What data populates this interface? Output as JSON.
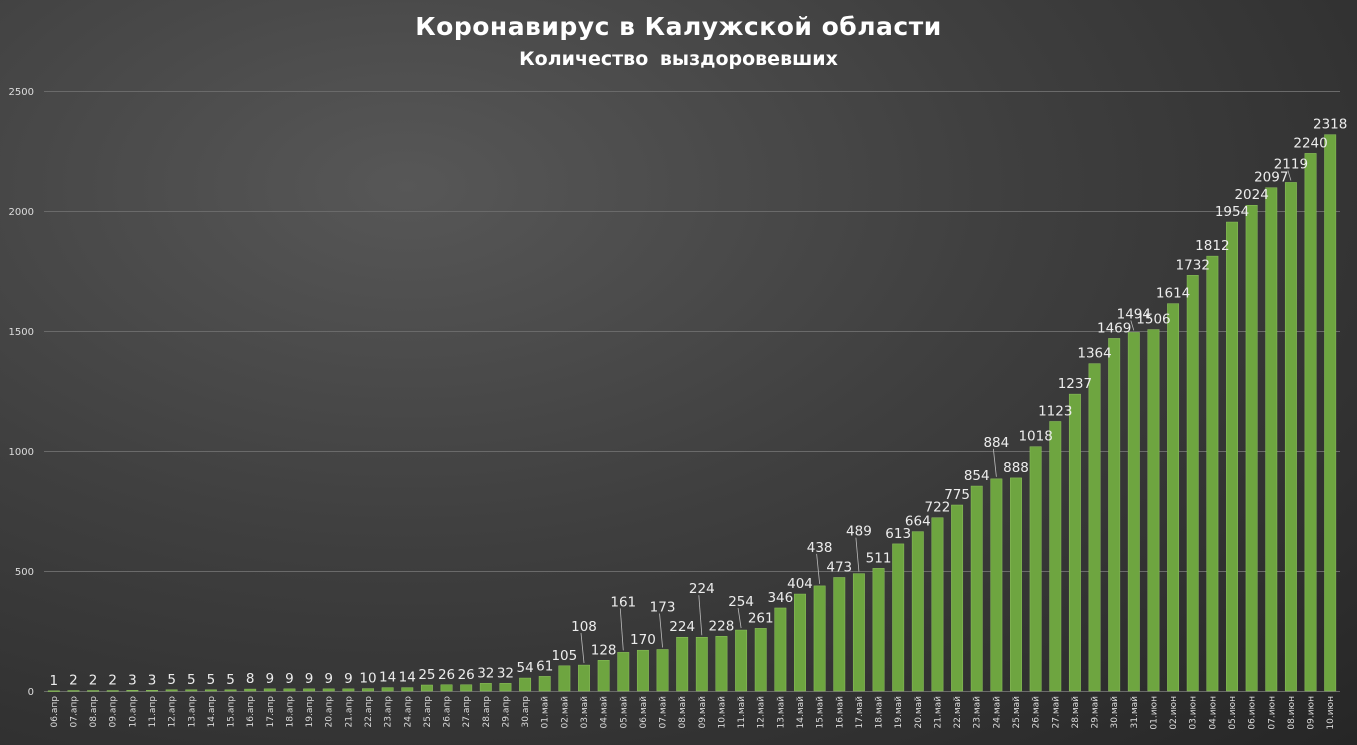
{
  "chart_data": {
    "type": "bar",
    "title": "Коронавирус в Калужской области",
    "subtitle": "Количество выздоровевших",
    "xlabel": "",
    "ylabel": "",
    "ylim": [
      0,
      2500
    ],
    "yticks": [
      0,
      500,
      1000,
      1500,
      2000,
      2500
    ],
    "grid": true,
    "legend": "none",
    "bar_color": "#6ea540",
    "categories": [
      "06.апр",
      "07.апр",
      "08.апр",
      "09.апр",
      "10.апр",
      "11.апр",
      "12.апр",
      "13.апр",
      "14.апр",
      "15.апр",
      "16.апр",
      "17.апр",
      "18.апр",
      "19.апр",
      "20.апр",
      "21.апр",
      "22.апр",
      "23.апр",
      "24.апр",
      "25.апр",
      "26.апр",
      "27.апр",
      "28.апр",
      "29.апр",
      "30.апр",
      "01.май",
      "02.май",
      "03.май",
      "04.май",
      "05.май",
      "06.май",
      "07.май",
      "08.май",
      "09.май",
      "10.май",
      "11.май",
      "12.май",
      "13.май",
      "14.май",
      "15.май",
      "16.май",
      "17.май",
      "18.май",
      "19.май",
      "20.май",
      "21.май",
      "22.май",
      "23.май",
      "24.май",
      "25.май",
      "26.май",
      "27.май",
      "28.май",
      "29.май",
      "30.май",
      "31.май",
      "01.июн",
      "02.июн",
      "03.июн",
      "04.июн",
      "05.июн",
      "06.июн",
      "07.июн",
      "08.июн",
      "09.июн",
      "10.июн"
    ],
    "values": [
      1,
      2,
      2,
      2,
      3,
      3,
      5,
      5,
      5,
      5,
      8,
      9,
      9,
      9,
      9,
      9,
      10,
      14,
      14,
      25,
      26,
      26,
      32,
      32,
      54,
      61,
      105,
      108,
      128,
      161,
      170,
      173,
      224,
      224,
      228,
      254,
      261,
      346,
      404,
      438,
      473,
      489,
      511,
      613,
      664,
      722,
      775,
      854,
      884,
      888,
      1018,
      1123,
      1237,
      1364,
      1469,
      1494,
      1506,
      1614,
      1732,
      1812,
      1954,
      2024,
      2097,
      2119,
      2240,
      2318
    ]
  }
}
